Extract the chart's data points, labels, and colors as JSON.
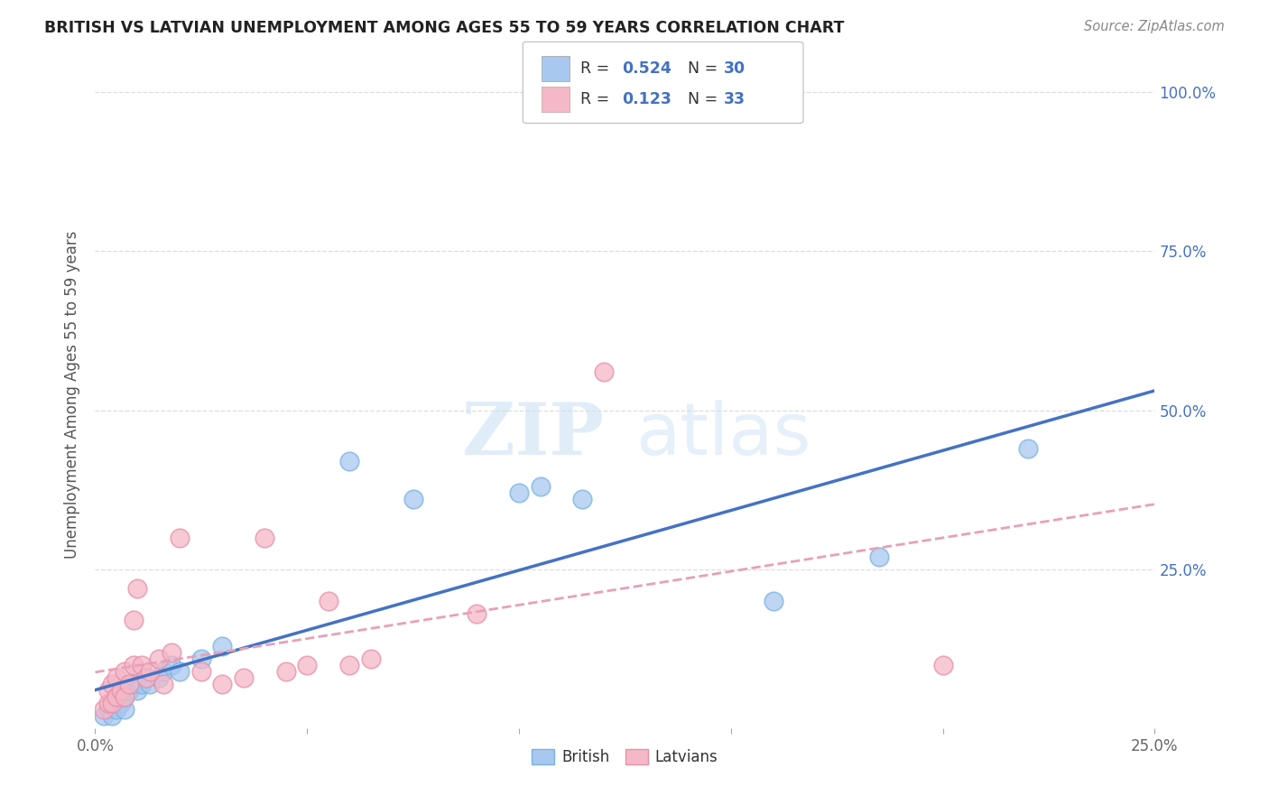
{
  "title": "BRITISH VS LATVIAN UNEMPLOYMENT AMONG AGES 55 TO 59 YEARS CORRELATION CHART",
  "source": "Source: ZipAtlas.com",
  "ylabel": "Unemployment Among Ages 55 to 59 years",
  "xlim": [
    0.0,
    0.25
  ],
  "ylim": [
    0.0,
    1.05
  ],
  "xticks": [
    0.0,
    0.05,
    0.1,
    0.15,
    0.2,
    0.25
  ],
  "yticks": [
    0.25,
    0.5,
    0.75,
    1.0
  ],
  "ytick_labels": [
    "25.0%",
    "50.0%",
    "75.0%",
    "100.0%"
  ],
  "xtick_labels": [
    "0.0%",
    "",
    "",
    "",
    "",
    "25.0%"
  ],
  "british_color": "#a8c8f0",
  "british_edge_color": "#7ab3e0",
  "latvian_color": "#f4b8c8",
  "latvian_edge_color": "#e890a8",
  "british_R": 0.524,
  "british_N": 30,
  "latvian_R": 0.123,
  "latvian_N": 33,
  "watermark_zip": "ZIP",
  "watermark_atlas": "atlas",
  "british_line_color": "#4472c4",
  "latvian_line_color": "#e8a0b8",
  "legend_R_color": "#4472c4",
  "legend_N_color": "#4472c4",
  "background_color": "#ffffff",
  "british_x": [
    0.002,
    0.003,
    0.004,
    0.004,
    0.005,
    0.005,
    0.006,
    0.006,
    0.007,
    0.007,
    0.008,
    0.009,
    0.01,
    0.011,
    0.012,
    0.013,
    0.015,
    0.016,
    0.018,
    0.02,
    0.025,
    0.03,
    0.06,
    0.075,
    0.1,
    0.105,
    0.115,
    0.16,
    0.185,
    0.22
  ],
  "british_y": [
    0.02,
    0.03,
    0.02,
    0.04,
    0.03,
    0.05,
    0.04,
    0.06,
    0.03,
    0.05,
    0.06,
    0.07,
    0.06,
    0.07,
    0.08,
    0.07,
    0.08,
    0.09,
    0.1,
    0.09,
    0.11,
    0.13,
    0.42,
    0.36,
    0.37,
    0.38,
    0.36,
    0.2,
    0.27,
    0.44
  ],
  "latvian_x": [
    0.002,
    0.003,
    0.003,
    0.004,
    0.004,
    0.005,
    0.005,
    0.006,
    0.007,
    0.007,
    0.008,
    0.009,
    0.009,
    0.01,
    0.011,
    0.012,
    0.013,
    0.015,
    0.016,
    0.018,
    0.02,
    0.025,
    0.03,
    0.035,
    0.04,
    0.045,
    0.05,
    0.055,
    0.06,
    0.065,
    0.09,
    0.12,
    0.2
  ],
  "latvian_y": [
    0.03,
    0.04,
    0.06,
    0.04,
    0.07,
    0.05,
    0.08,
    0.06,
    0.05,
    0.09,
    0.07,
    0.1,
    0.17,
    0.22,
    0.1,
    0.08,
    0.09,
    0.11,
    0.07,
    0.12,
    0.3,
    0.09,
    0.07,
    0.08,
    0.3,
    0.09,
    0.1,
    0.2,
    0.1,
    0.11,
    0.18,
    0.56,
    0.1
  ]
}
